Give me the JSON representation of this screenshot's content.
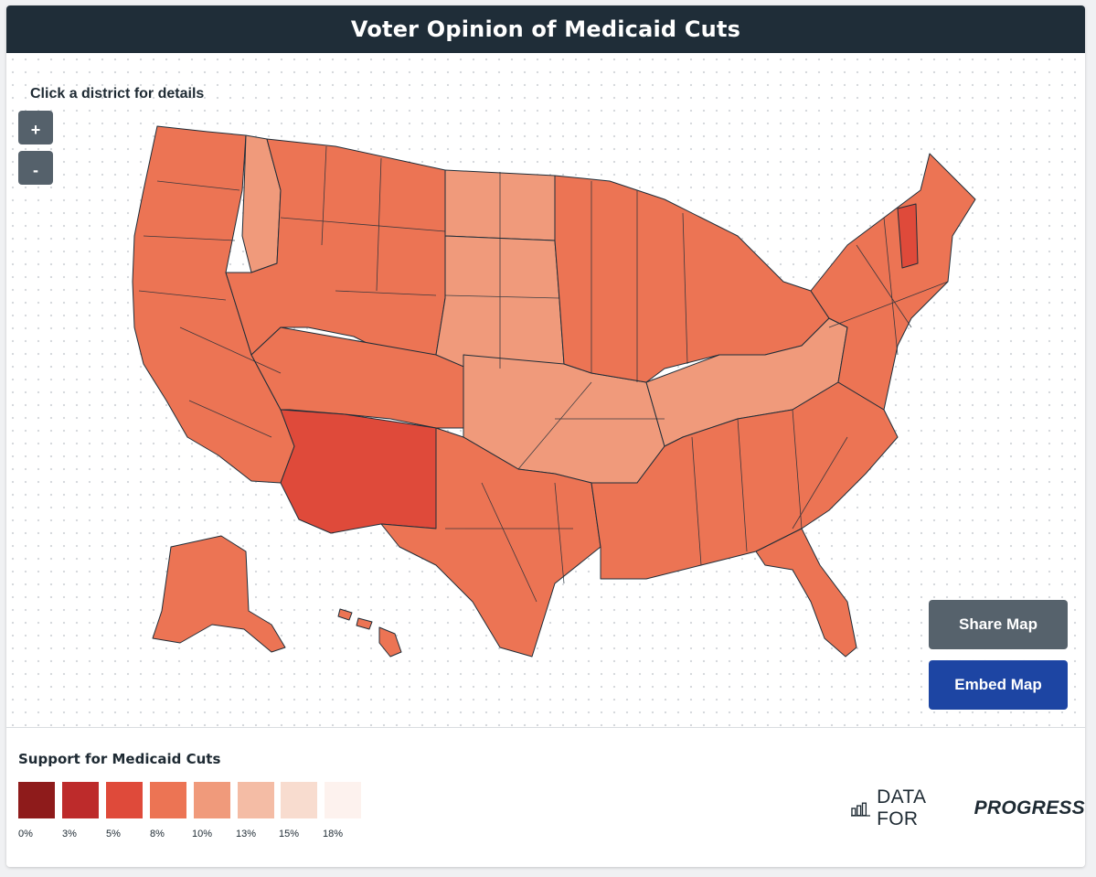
{
  "title": "Voter Opinion of Medicaid Cuts",
  "hint": "Click a district for details",
  "zoom": {
    "in_label": "+",
    "out_label": "-"
  },
  "buttons": {
    "share_label": "Share Map",
    "embed_label": "Embed Map"
  },
  "legend": {
    "title": "Support for Medicaid Cuts",
    "scale": [
      {
        "label": "0%",
        "color": "#8e1b1b"
      },
      {
        "label": "3%",
        "color": "#bd2b2b"
      },
      {
        "label": "5%",
        "color": "#df4a3a"
      },
      {
        "label": "8%",
        "color": "#ec7454"
      },
      {
        "label": "10%",
        "color": "#f09a7b"
      },
      {
        "label": "13%",
        "color": "#f4bca5"
      },
      {
        "label": "15%",
        "color": "#f8dccf"
      },
      {
        "label": "18%",
        "color": "#fdf2ee"
      }
    ]
  },
  "brand": {
    "light": "DATA FOR",
    "strong": "PROGRESS",
    "icon": "bar-chart-icon"
  },
  "map": {
    "border_color": "#1f2d38",
    "regions": [
      {
        "name": "west-coast",
        "color": "#ec7454"
      },
      {
        "name": "mountain-north",
        "color": "#ec7454"
      },
      {
        "name": "idaho-panhandle",
        "color": "#f09a7b"
      },
      {
        "name": "dakota-north",
        "color": "#f09a7b"
      },
      {
        "name": "plains",
        "color": "#ec7454"
      },
      {
        "name": "central-plains",
        "color": "#f09a7b"
      },
      {
        "name": "southwest",
        "color": "#df4a3a"
      },
      {
        "name": "texas",
        "color": "#ec7454"
      },
      {
        "name": "oklahoma-arkansas",
        "color": "#f09a7b"
      },
      {
        "name": "midwest",
        "color": "#ec7454"
      },
      {
        "name": "appalachia",
        "color": "#f09a7b"
      },
      {
        "name": "southeast",
        "color": "#ec7454"
      },
      {
        "name": "northeast",
        "color": "#ec7454"
      },
      {
        "name": "vermont",
        "color": "#df4a3a"
      },
      {
        "name": "florida",
        "color": "#ec7454"
      },
      {
        "name": "alaska",
        "color": "#ec7454"
      },
      {
        "name": "hawaii",
        "color": "#ec7454"
      }
    ]
  }
}
